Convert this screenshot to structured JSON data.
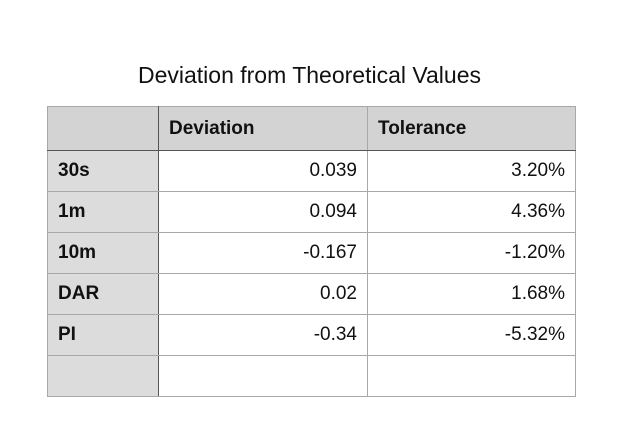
{
  "title": "Deviation from Theoretical Values",
  "table": {
    "columns": [
      "Deviation",
      "Tolerance"
    ],
    "rows": [
      {
        "label": "30s",
        "cells": [
          "0.039",
          "3.20%"
        ]
      },
      {
        "label": "1m",
        "cells": [
          "0.094",
          "4.36%"
        ]
      },
      {
        "label": "10m",
        "cells": [
          "-0.167",
          "-1.20%"
        ]
      },
      {
        "label": "DAR",
        "cells": [
          "0.02",
          "1.68%"
        ]
      },
      {
        "label": "PI",
        "cells": [
          "-0.34",
          "-5.32%"
        ]
      }
    ]
  }
}
